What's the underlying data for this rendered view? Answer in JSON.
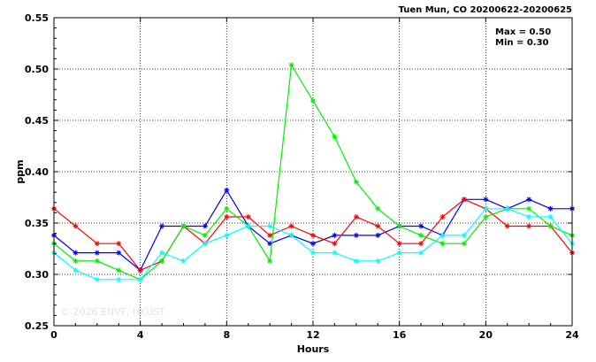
{
  "chart_data": {
    "type": "line",
    "title": "Tuen Mun, CO 20200622-20200625",
    "xlabel": "Hours",
    "ylabel": "ppm",
    "xlim": [
      0,
      24
    ],
    "ylim": [
      0.25,
      0.55
    ],
    "xticks": [
      0,
      4,
      8,
      12,
      16,
      20,
      24
    ],
    "yticks": [
      0.25,
      0.3,
      0.35,
      0.4,
      0.45,
      0.5,
      0.55
    ],
    "xtick_labels": [
      "0",
      "4",
      "8",
      "12",
      "16",
      "20",
      "24"
    ],
    "ytick_labels": [
      "0.25",
      "0.30",
      "0.35",
      "0.40",
      "0.45",
      "0.50",
      "0.55"
    ],
    "grid": true,
    "annotations": {
      "max": "Max = 0.50",
      "min": "Min = 0.30",
      "watermark": "© 2026  ENVF, HKUST"
    },
    "x": [
      0,
      1,
      2,
      3,
      4,
      5,
      6,
      7,
      8,
      9,
      10,
      11,
      12,
      13,
      14,
      15,
      16,
      17,
      18,
      19,
      20,
      21,
      22,
      23,
      24
    ],
    "series": [
      {
        "color": "#0000ff",
        "values": [
          0.338,
          0.321,
          0.321,
          0.321,
          0.304,
          0.347,
          0.347,
          0.347,
          0.382,
          0.347,
          0.33,
          0.338,
          0.33,
          0.338,
          0.338,
          0.338,
          0.347,
          0.347,
          0.338,
          0.373,
          0.373,
          0.364,
          0.373,
          0.364,
          0.364
        ]
      },
      {
        "color": "#ff0000",
        "values": [
          0.364,
          0.347,
          0.33,
          0.33,
          0.304,
          0.313,
          0.347,
          0.33,
          0.356,
          0.356,
          0.338,
          0.347,
          0.338,
          0.33,
          0.356,
          0.347,
          0.33,
          0.33,
          0.356,
          0.373,
          0.364,
          0.347,
          0.347,
          0.347,
          0.321
        ]
      },
      {
        "color": "#00ee00",
        "values": [
          0.33,
          0.313,
          0.313,
          0.304,
          0.295,
          0.313,
          0.347,
          0.338,
          0.364,
          0.347,
          0.313,
          0.504,
          0.469,
          0.434,
          0.39,
          0.364,
          0.347,
          0.338,
          0.33,
          0.33,
          0.356,
          0.364,
          0.364,
          0.347,
          0.338
        ]
      },
      {
        "color": "#00ffff",
        "values": [
          0.321,
          0.304,
          0.295,
          0.295,
          0.295,
          0.321,
          0.313,
          0.33,
          0.338,
          0.347,
          0.347,
          0.338,
          0.321,
          0.321,
          0.313,
          0.313,
          0.321,
          0.321,
          0.338,
          0.338,
          0.364,
          0.364,
          0.356,
          0.356,
          0.33
        ]
      }
    ]
  }
}
